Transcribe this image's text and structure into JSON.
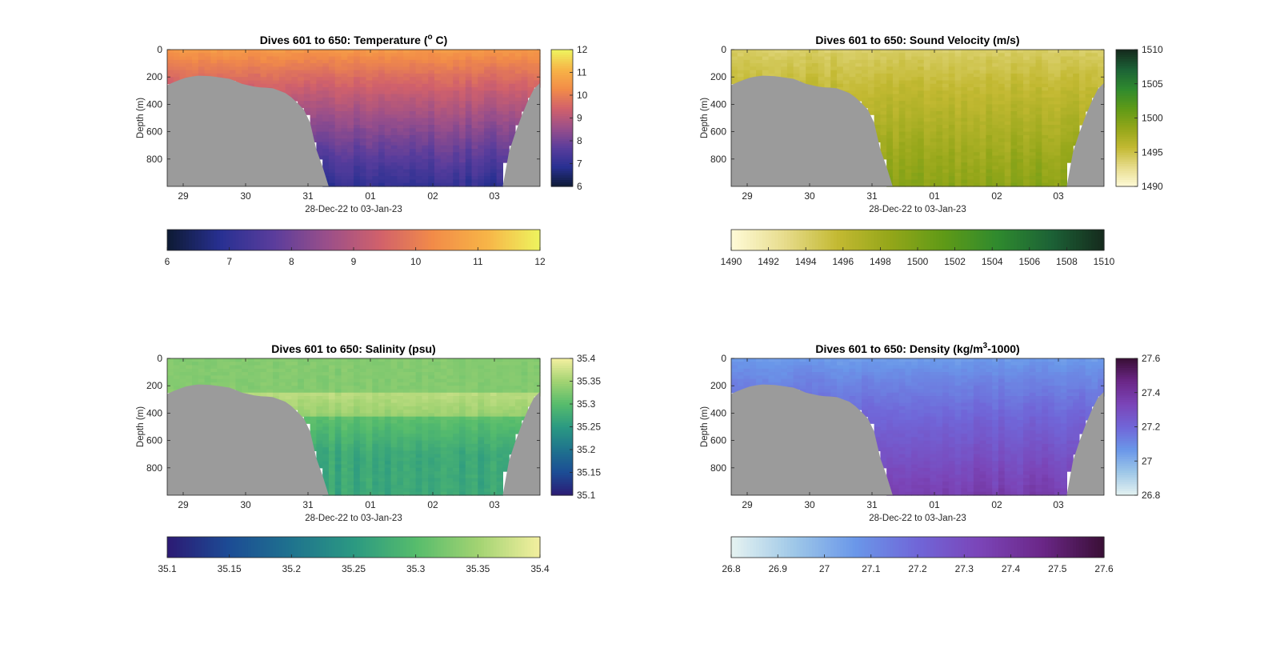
{
  "chart_data": [
    {
      "type": "heatmap",
      "title": "Dives 601 to 650: Temperature (",
      "title_sup": "o",
      "title_tail": " C)",
      "ylabel": "Depth (m)",
      "xlabel": "28-Dec-22 to 03-Jan-23",
      "x_ticks": [
        "29",
        "30",
        "31",
        "01",
        "02",
        "03"
      ],
      "y_ticks": [
        "0",
        "200",
        "400",
        "600",
        "800"
      ],
      "ylim": [
        0,
        1000
      ],
      "colormap": [
        "#0d1a33",
        "#283092",
        "#5a3d9c",
        "#9a4f8a",
        "#d1616b",
        "#f28c48",
        "#f7b447",
        "#eef45e"
      ],
      "clim": [
        6,
        12
      ],
      "colorbar_ticks": [
        "6",
        "7",
        "8",
        "9",
        "10",
        "11",
        "12"
      ],
      "horizontal_colorbar_ticks": [
        "6",
        "7",
        "8",
        "9",
        "10",
        "11",
        "12"
      ],
      "surface_value": 10.6,
      "deep_value": 7.0
    },
    {
      "type": "heatmap",
      "title": "Dives 601 to 650: Sound Velocity (m/s)",
      "ylabel": "Depth (m)",
      "xlabel": "28-Dec-22 to 03-Jan-23",
      "x_ticks": [
        "29",
        "30",
        "31",
        "01",
        "02",
        "03"
      ],
      "y_ticks": [
        "0",
        "200",
        "400",
        "600",
        "800"
      ],
      "ylim": [
        0,
        1000
      ],
      "colormap": [
        "#fffbd8",
        "#e7dc8c",
        "#c3b932",
        "#93a619",
        "#5f9a17",
        "#2f8a2e",
        "#1c6236",
        "#152a1d"
      ],
      "clim": [
        1490,
        1510
      ],
      "colorbar_ticks": [
        "1490",
        "1495",
        "1500",
        "1505",
        "1510"
      ],
      "horizontal_colorbar_ticks": [
        "1490",
        "1492",
        "1494",
        "1496",
        "1498",
        "1500",
        "1502",
        "1504",
        "1506",
        "1508",
        "1510"
      ],
      "surface_value": 1494.0,
      "deep_value": 1499.0
    },
    {
      "type": "heatmap",
      "title": "Dives 601 to 650: Salinity (psu)",
      "ylabel": "Depth (m)",
      "xlabel": "28-Dec-22 to 03-Jan-23",
      "x_ticks": [
        "29",
        "30",
        "31",
        "01",
        "02",
        "03"
      ],
      "y_ticks": [
        "0",
        "200",
        "400",
        "600",
        "800"
      ],
      "ylim": [
        0,
        1000
      ],
      "colormap": [
        "#2c1a74",
        "#1c4c95",
        "#1f738e",
        "#2b9982",
        "#56bc6c",
        "#a2d372",
        "#f3ef9f"
      ],
      "clim": [
        35.1,
        35.4
      ],
      "colorbar_ticks": [
        "35.1",
        "35.15",
        "35.2",
        "35.25",
        "35.3",
        "35.35",
        "35.4"
      ],
      "horizontal_colorbar_ticks": [
        "35.1",
        "35.15",
        "35.2",
        "35.25",
        "35.3",
        "35.35",
        "35.4"
      ],
      "surface_value": 35.33,
      "deep_value": 35.27
    },
    {
      "type": "heatmap",
      "title": "Dives 601 to 650: Density (kg/m",
      "title_sup": "3",
      "title_tail": "-1000)",
      "ylabel": "Depth (m)",
      "xlabel": "28-Dec-22 to 03-Jan-23",
      "x_ticks": [
        "29",
        "30",
        "31",
        "01",
        "02",
        "03"
      ],
      "y_ticks": [
        "0",
        "200",
        "400",
        "600",
        "800"
      ],
      "ylim": [
        0,
        1000
      ],
      "colormap": [
        "#e6f3f1",
        "#9fc8e8",
        "#6a97e9",
        "#7066d8",
        "#7b45b8",
        "#6b2788",
        "#3a0f36"
      ],
      "clim": [
        26.8,
        27.6
      ],
      "colorbar_ticks": [
        "26.8",
        "27",
        "27.2",
        "27.4",
        "27.6"
      ],
      "horizontal_colorbar_ticks": [
        "26.8",
        "26.9",
        "27",
        "27.1",
        "27.2",
        "27.3",
        "27.4",
        "27.5",
        "27.6"
      ],
      "surface_value": 27.05,
      "deep_value": 27.36
    }
  ],
  "colors": {
    "seafloor": "#9b9b9b"
  }
}
